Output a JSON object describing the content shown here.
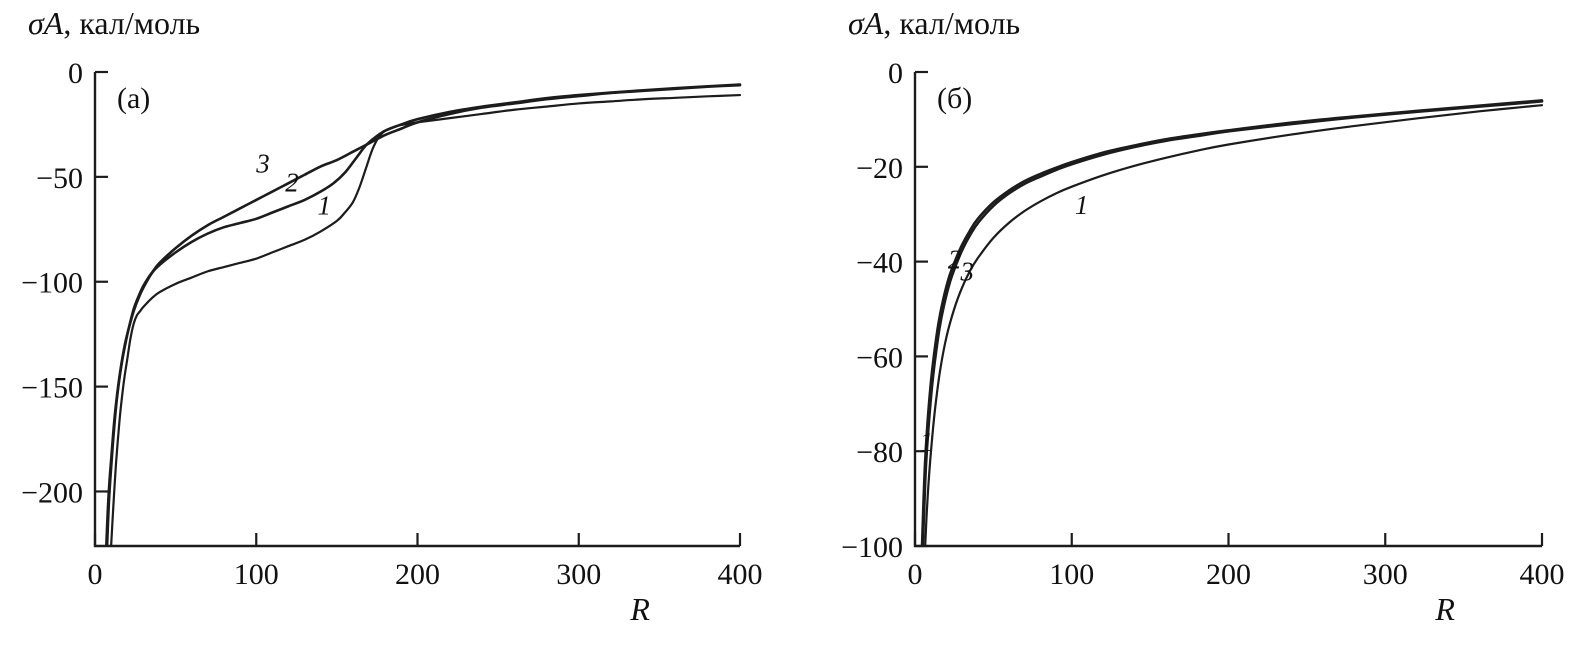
{
  "figure": {
    "background": "#ffffff",
    "line_color": "#1c1c1c"
  },
  "chart_data": [
    {
      "type": "line",
      "panel_label": "(а)",
      "ylabel": {
        "italic_part": "σA",
        "rest": ", кал/моль"
      },
      "xlabel": "R",
      "xlim": [
        0,
        400
      ],
      "ylim": [
        -226,
        0
      ],
      "grid": false,
      "legend": false,
      "margins": {
        "l": 95,
        "r": 46,
        "t": 72,
        "b": 106
      },
      "x_ticks": [
        {
          "v": 0,
          "t": "0"
        },
        {
          "v": 100,
          "t": "100"
        },
        {
          "v": 200,
          "t": "200"
        },
        {
          "v": 300,
          "t": "300"
        },
        {
          "v": 400,
          "t": "400"
        }
      ],
      "y_ticks": [
        {
          "v": 0,
          "t": "0"
        },
        {
          "v": -50,
          "t": "−50"
        },
        {
          "v": -100,
          "t": "−100"
        },
        {
          "v": -150,
          "t": "−150"
        },
        {
          "v": -200,
          "t": "−200"
        }
      ],
      "series": [
        {
          "name": "1",
          "width": 2.2,
          "points": [
            [
              10,
              -226
            ],
            [
              11,
              -212
            ],
            [
              12,
              -199
            ],
            [
              13,
              -187
            ],
            [
              14,
              -177
            ],
            [
              15,
              -168
            ],
            [
              16,
              -160
            ],
            [
              18,
              -147
            ],
            [
              20,
              -137
            ],
            [
              22,
              -127
            ],
            [
              24,
              -120
            ],
            [
              26,
              -116
            ],
            [
              28,
              -114
            ],
            [
              30,
              -112
            ],
            [
              35,
              -108
            ],
            [
              40,
              -105
            ],
            [
              50,
              -101
            ],
            [
              60,
              -98
            ],
            [
              70,
              -95
            ],
            [
              80,
              -93
            ],
            [
              90,
              -91
            ],
            [
              100,
              -89
            ],
            [
              110,
              -86
            ],
            [
              120,
              -83
            ],
            [
              130,
              -80
            ],
            [
              140,
              -76
            ],
            [
              150,
              -71
            ],
            [
              155,
              -67
            ],
            [
              160,
              -62
            ],
            [
              164,
              -55
            ],
            [
              168,
              -46
            ],
            [
              172,
              -37
            ],
            [
              176,
              -31
            ],
            [
              180,
              -28
            ],
            [
              186,
              -26
            ],
            [
              192,
              -25
            ],
            [
              200,
              -24
            ],
            [
              220,
              -22
            ],
            [
              240,
              -20
            ],
            [
              260,
              -18
            ],
            [
              280,
              -16.5
            ],
            [
              300,
              -15
            ],
            [
              320,
              -14
            ],
            [
              340,
              -13
            ],
            [
              360,
              -12.3
            ],
            [
              380,
              -11.6
            ],
            [
              400,
              -11
            ]
          ]
        },
        {
          "name": "2",
          "width": 2.6,
          "points": [
            [
              7.5,
              -226
            ],
            [
              8.5,
              -207
            ],
            [
              9.5,
              -194
            ],
            [
              11,
              -178
            ],
            [
              13,
              -160
            ],
            [
              15,
              -147
            ],
            [
              17,
              -137
            ],
            [
              19,
              -129
            ],
            [
              21,
              -122
            ],
            [
              24,
              -113
            ],
            [
              27,
              -107
            ],
            [
              30,
              -102
            ],
            [
              35,
              -96
            ],
            [
              40,
              -92
            ],
            [
              50,
              -86
            ],
            [
              60,
              -81
            ],
            [
              70,
              -77
            ],
            [
              80,
              -74
            ],
            [
              90,
              -72
            ],
            [
              100,
              -70
            ],
            [
              110,
              -67
            ],
            [
              120,
              -64
            ],
            [
              130,
              -61
            ],
            [
              140,
              -57
            ],
            [
              148,
              -53
            ],
            [
              155,
              -48
            ],
            [
              162,
              -41
            ],
            [
              168,
              -35
            ],
            [
              174,
              -31
            ],
            [
              180,
              -28
            ],
            [
              190,
              -25
            ],
            [
              200,
              -22.5
            ],
            [
              220,
              -19
            ],
            [
              240,
              -16.5
            ],
            [
              260,
              -14.5
            ],
            [
              280,
              -12.5
            ],
            [
              300,
              -11
            ],
            [
              320,
              -9.8
            ],
            [
              340,
              -8.7
            ],
            [
              360,
              -7.7
            ],
            [
              380,
              -6.8
            ],
            [
              400,
              -6
            ]
          ]
        },
        {
          "name": "3",
          "width": 2.6,
          "points": [
            [
              7,
              -226
            ],
            [
              8,
              -208
            ],
            [
              9,
              -195
            ],
            [
              10,
              -185
            ],
            [
              12,
              -166
            ],
            [
              14,
              -152
            ],
            [
              16,
              -141
            ],
            [
              18,
              -132
            ],
            [
              20,
              -125
            ],
            [
              24,
              -114
            ],
            [
              28,
              -106
            ],
            [
              32,
              -100
            ],
            [
              36,
              -95
            ],
            [
              40,
              -91
            ],
            [
              50,
              -84
            ],
            [
              60,
              -78
            ],
            [
              70,
              -73
            ],
            [
              80,
              -69
            ],
            [
              90,
              -65
            ],
            [
              100,
              -61
            ],
            [
              110,
              -57
            ],
            [
              120,
              -53
            ],
            [
              130,
              -49
            ],
            [
              140,
              -45
            ],
            [
              150,
              -42
            ],
            [
              160,
              -38
            ],
            [
              170,
              -34
            ],
            [
              180,
              -30
            ],
            [
              190,
              -27
            ],
            [
              200,
              -24
            ],
            [
              220,
              -20
            ],
            [
              240,
              -17
            ],
            [
              260,
              -15
            ],
            [
              280,
              -13
            ],
            [
              300,
              -11.5
            ],
            [
              320,
              -10
            ],
            [
              340,
              -9
            ],
            [
              360,
              -8
            ],
            [
              380,
              -7
            ],
            [
              400,
              -6.3
            ]
          ]
        }
      ],
      "curve_labels": [
        {
          "text": "3",
          "x": 100,
          "y": -48
        },
        {
          "text": "2",
          "x": 118,
          "y": -57
        },
        {
          "text": "1",
          "x": 138,
          "y": -68
        }
      ]
    },
    {
      "type": "line",
      "panel_label": "(б)",
      "ylabel": {
        "italic_part": "σA",
        "rest": ", кал/моль"
      },
      "xlabel": "R",
      "xlim": [
        0,
        400
      ],
      "ylim": [
        -100,
        0
      ],
      "grid": false,
      "legend": false,
      "margins": {
        "l": 129,
        "r": 30,
        "t": 72,
        "b": 106
      },
      "x_ticks": [
        {
          "v": 0,
          "t": "0"
        },
        {
          "v": 100,
          "t": "100"
        },
        {
          "v": 200,
          "t": "200"
        },
        {
          "v": 300,
          "t": "300"
        },
        {
          "v": 400,
          "t": "400"
        }
      ],
      "y_ticks": [
        {
          "v": 0,
          "t": "0"
        },
        {
          "v": -20,
          "t": "−20"
        },
        {
          "v": -40,
          "t": "−40"
        },
        {
          "v": -60,
          "t": "−60"
        },
        {
          "v": -80,
          "t": "−80"
        },
        {
          "v": -100,
          "t": "−100"
        }
      ],
      "series": [
        {
          "name": "1",
          "width": 2.2,
          "points": [
            [
              6.5,
              -100
            ],
            [
              7.5,
              -93
            ],
            [
              9,
              -85
            ],
            [
              11,
              -77
            ],
            [
              13,
              -70.5
            ],
            [
              16,
              -63
            ],
            [
              20,
              -56
            ],
            [
              25,
              -50
            ],
            [
              30,
              -45.5
            ],
            [
              35,
              -42
            ],
            [
              40,
              -39.3
            ],
            [
              50,
              -35
            ],
            [
              60,
              -31.8
            ],
            [
              70,
              -29.3
            ],
            [
              80,
              -27.3
            ],
            [
              90,
              -25.6
            ],
            [
              100,
              -24.2
            ],
            [
              120,
              -21.8
            ],
            [
              140,
              -19.8
            ],
            [
              160,
              -18.1
            ],
            [
              180,
              -16.6
            ],
            [
              200,
              -15.3
            ],
            [
              240,
              -13.2
            ],
            [
              280,
              -11.4
            ],
            [
              320,
              -9.8
            ],
            [
              360,
              -8.3
            ],
            [
              400,
              -7
            ]
          ]
        },
        {
          "name": "2",
          "width": 2.6,
          "points": [
            [
              4.5,
              -100
            ],
            [
              5.5,
              -90
            ],
            [
              6.5,
              -82
            ],
            [
              8,
              -74
            ],
            [
              10,
              -66
            ],
            [
              12,
              -60
            ],
            [
              15,
              -53
            ],
            [
              18,
              -48
            ],
            [
              22,
              -43
            ],
            [
              26,
              -39.5
            ],
            [
              30,
              -36.5
            ],
            [
              35,
              -33.5
            ],
            [
              40,
              -31
            ],
            [
              50,
              -27.5
            ],
            [
              60,
              -25
            ],
            [
              70,
              -23
            ],
            [
              80,
              -21.5
            ],
            [
              90,
              -20.2
            ],
            [
              100,
              -19
            ],
            [
              120,
              -17
            ],
            [
              140,
              -15.5
            ],
            [
              160,
              -14.2
            ],
            [
              180,
              -13.2
            ],
            [
              200,
              -12.3
            ],
            [
              240,
              -10.7
            ],
            [
              280,
              -9.4
            ],
            [
              320,
              -8.2
            ],
            [
              360,
              -7.1
            ],
            [
              400,
              -6
            ]
          ]
        },
        {
          "name": "3",
          "width": 2.6,
          "points": [
            [
              5,
              -100
            ],
            [
              6,
              -91
            ],
            [
              7,
              -83
            ],
            [
              8.5,
              -75.5
            ],
            [
              10.5,
              -67.5
            ],
            [
              12.5,
              -61.5
            ],
            [
              15.5,
              -54.3
            ],
            [
              18.5,
              -49.2
            ],
            [
              22.5,
              -44.1
            ],
            [
              26.5,
              -40.4
            ],
            [
              30.5,
              -37.3
            ],
            [
              35.5,
              -34.2
            ],
            [
              40.5,
              -31.7
            ],
            [
              50.5,
              -28.1
            ],
            [
              60.5,
              -25.5
            ],
            [
              70.5,
              -23.5
            ],
            [
              80.5,
              -22
            ],
            [
              90.5,
              -20.6
            ],
            [
              100.5,
              -19.4
            ],
            [
              120.5,
              -17.4
            ],
            [
              140.5,
              -15.8
            ],
            [
              160.5,
              -14.5
            ],
            [
              180.5,
              -13.5
            ],
            [
              200.5,
              -12.5
            ],
            [
              240,
              -11
            ],
            [
              280,
              -9.6
            ],
            [
              320,
              -8.4
            ],
            [
              360,
              -7.3
            ],
            [
              400,
              -6.2
            ]
          ]
        }
      ],
      "curve_labels": [
        {
          "text": "2",
          "x": 21,
          "y": -41.5
        },
        {
          "text": "3",
          "x": 29,
          "y": -44
        },
        {
          "text": "1",
          "x": 102,
          "y": -30
        },
        {
          "text": "1",
          "x": 3,
          "y": -80
        }
      ]
    }
  ]
}
